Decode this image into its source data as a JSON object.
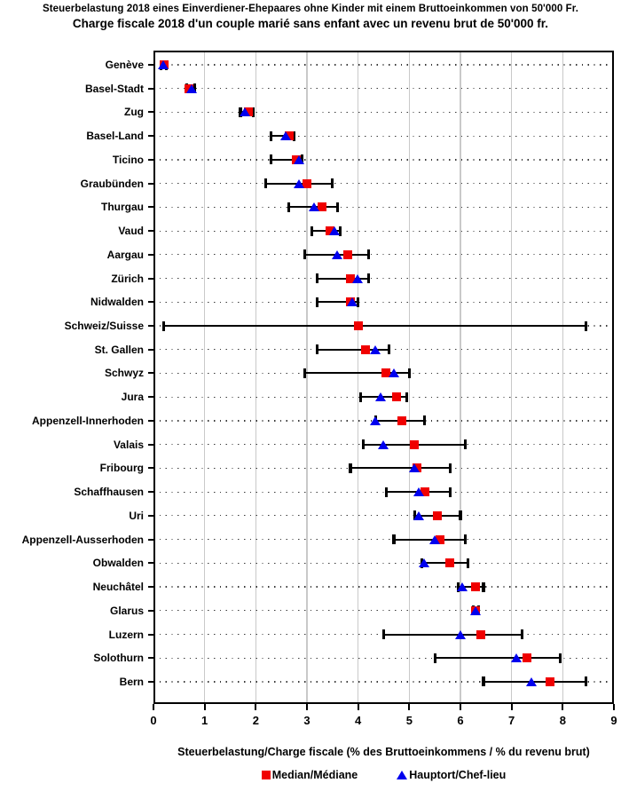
{
  "title_de": "Steuerbelastung 2018 eines Einverdiener-Ehepaares ohne Kinder mit einem Bruttoeinkommen von 50'000 Fr.",
  "title_fr": "Charge fiscale 2018 d'un couple marié sans enfant avec un revenu brut de 50'000 fr.",
  "x_axis": {
    "label": "Steuerbelastung/Charge fiscale (% des Bruttoeinkommens / % du revenu brut)",
    "min": 0,
    "max": 9,
    "ticks": [
      0,
      1,
      2,
      3,
      4,
      5,
      6,
      7,
      8,
      9
    ],
    "gridlines_at": [
      1,
      2,
      3,
      4,
      5,
      6,
      7,
      8
    ]
  },
  "legend": [
    {
      "label": "Median/Médiane",
      "marker": "red-square",
      "color": "#f00000"
    },
    {
      "label": "Hauptort/Chef-lieu",
      "marker": "blue-triangle",
      "color": "#0000ee"
    }
  ],
  "colors": {
    "median": "#f00000",
    "hauptort": "#0000ee",
    "range_bar": "#000000",
    "gridline": "#c9c9c9",
    "background": "#ffffff"
  },
  "chart_data": {
    "type": "dot-range",
    "orientation": "horizontal",
    "x_range": [
      0,
      9
    ],
    "unit": "% des Bruttoeinkommens / % du revenu brut",
    "series_legend": [
      "Median/Médiane",
      "Hauptort/Chef-lieu"
    ],
    "rows": [
      {
        "name": "Genève",
        "min": 0.15,
        "median": 0.2,
        "hauptort": 0.2,
        "max": 0.25
      },
      {
        "name": "Basel-Stadt",
        "min": 0.65,
        "median": 0.7,
        "hauptort": 0.75,
        "max": 0.8
      },
      {
        "name": "Zug",
        "min": 1.7,
        "median": 1.85,
        "hauptort": 1.8,
        "max": 1.95
      },
      {
        "name": "Basel-Land",
        "min": 2.3,
        "median": 2.65,
        "hauptort": 2.6,
        "max": 2.75
      },
      {
        "name": "Ticino",
        "min": 2.3,
        "median": 2.8,
        "hauptort": 2.85,
        "max": 2.9
      },
      {
        "name": "Graubünden",
        "min": 2.2,
        "median": 3.0,
        "hauptort": 2.85,
        "max": 3.5
      },
      {
        "name": "Thurgau",
        "min": 2.65,
        "median": 3.3,
        "hauptort": 3.15,
        "max": 3.6
      },
      {
        "name": "Vaud",
        "min": 3.1,
        "median": 3.45,
        "hauptort": 3.55,
        "max": 3.65
      },
      {
        "name": "Aargau",
        "min": 2.95,
        "median": 3.8,
        "hauptort": 3.6,
        "max": 4.2
      },
      {
        "name": "Zürich",
        "min": 3.2,
        "median": 3.85,
        "hauptort": 4.0,
        "max": 4.2
      },
      {
        "name": "Nidwalden",
        "min": 3.2,
        "median": 3.85,
        "hauptort": 3.9,
        "max": 4.0
      },
      {
        "name": "Schweiz/Suisse",
        "min": 0.2,
        "median": 4.0,
        "hauptort": null,
        "max": 8.45
      },
      {
        "name": "St. Gallen",
        "min": 3.2,
        "median": 4.15,
        "hauptort": 4.35,
        "max": 4.6
      },
      {
        "name": "Schwyz",
        "min": 2.95,
        "median": 4.55,
        "hauptort": 4.7,
        "max": 5.0
      },
      {
        "name": "Jura",
        "min": 4.05,
        "median": 4.75,
        "hauptort": 4.45,
        "max": 4.95
      },
      {
        "name": "Appenzell-Innerhoden",
        "min": 4.35,
        "median": 4.85,
        "hauptort": 4.35,
        "max": 5.3
      },
      {
        "name": "Valais",
        "min": 4.1,
        "median": 5.1,
        "hauptort": 4.5,
        "max": 6.1
      },
      {
        "name": "Fribourg",
        "min": 3.85,
        "median": 5.15,
        "hauptort": 5.1,
        "max": 5.8
      },
      {
        "name": "Schaffhausen",
        "min": 4.55,
        "median": 5.3,
        "hauptort": 5.2,
        "max": 5.8
      },
      {
        "name": "Uri",
        "min": 5.1,
        "median": 5.55,
        "hauptort": 5.2,
        "max": 6.0
      },
      {
        "name": "Appenzell-Ausserhoden",
        "min": 4.7,
        "median": 5.6,
        "hauptort": 5.5,
        "max": 6.1
      },
      {
        "name": "Obwalden",
        "min": 5.25,
        "median": 5.8,
        "hauptort": 5.3,
        "max": 6.15
      },
      {
        "name": "Neuchâtel",
        "min": 5.95,
        "median": 6.3,
        "hauptort": 6.05,
        "max": 6.45
      },
      {
        "name": "Glarus",
        "min": 6.25,
        "median": 6.3,
        "hauptort": 6.3,
        "max": 6.35
      },
      {
        "name": "Luzern",
        "min": 4.5,
        "median": 6.4,
        "hauptort": 6.0,
        "max": 7.2
      },
      {
        "name": "Solothurn",
        "min": 5.5,
        "median": 7.3,
        "hauptort": 7.1,
        "max": 7.95
      },
      {
        "name": "Bern",
        "min": 6.45,
        "median": 7.75,
        "hauptort": 7.4,
        "max": 8.45
      }
    ]
  }
}
